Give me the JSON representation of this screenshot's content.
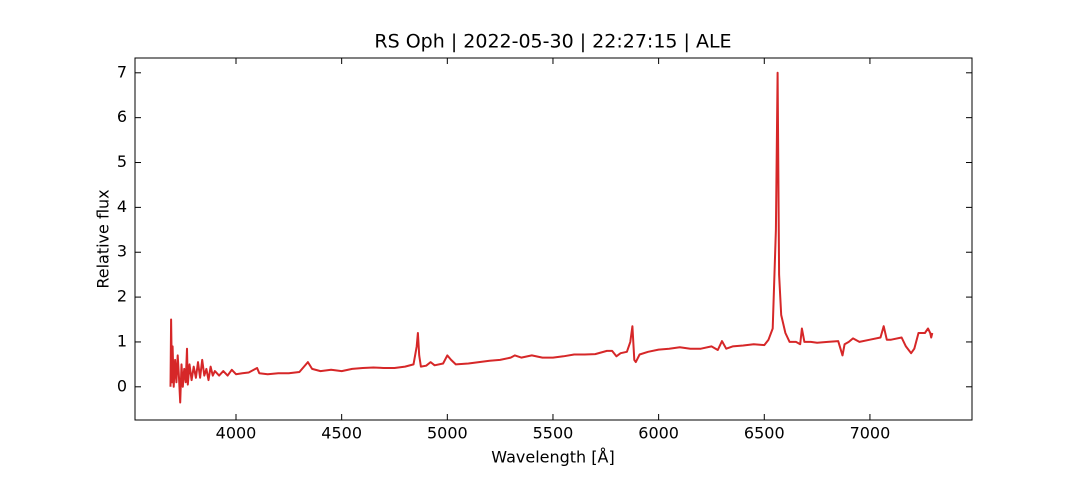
{
  "chart_data": {
    "type": "line",
    "title": "RS Oph | 2022-05-30 | 22:27:15 | ALE",
    "x_label": "Wavelength [Å]",
    "y_label": "Relative flux",
    "color": "#d62728",
    "xlim": [
      3522,
      7483
    ],
    "ylim": [
      -0.74,
      7.33
    ],
    "xticks": [
      4000,
      4500,
      5000,
      5500,
      6000,
      6500,
      7000
    ],
    "yticks": [
      0,
      1,
      2,
      3,
      4,
      5,
      6,
      7
    ],
    "x": [
      3690,
      3693,
      3697,
      3700,
      3705,
      3712,
      3718,
      3724,
      3730,
      3736,
      3742,
      3748,
      3755,
      3762,
      3768,
      3772,
      3780,
      3790,
      3800,
      3810,
      3820,
      3830,
      3840,
      3850,
      3860,
      3870,
      3880,
      3890,
      3900,
      3920,
      3940,
      3960,
      3980,
      4000,
      4030,
      4060,
      4100,
      4110,
      4150,
      4200,
      4250,
      4300,
      4340,
      4360,
      4400,
      4450,
      4500,
      4550,
      4600,
      4650,
      4700,
      4750,
      4800,
      4840,
      4855,
      4861,
      4867,
      4875,
      4900,
      4921,
      4940,
      4980,
      5000,
      5018,
      5040,
      5100,
      5150,
      5200,
      5250,
      5300,
      5320,
      5350,
      5400,
      5450,
      5500,
      5550,
      5600,
      5650,
      5700,
      5755,
      5780,
      5800,
      5820,
      5850,
      5866,
      5876,
      5885,
      5892,
      5910,
      5950,
      6000,
      6050,
      6100,
      6150,
      6200,
      6250,
      6280,
      6300,
      6320,
      6350,
      6400,
      6450,
      6500,
      6520,
      6540,
      6555,
      6563,
      6570,
      6580,
      6600,
      6620,
      6650,
      6670,
      6678,
      6690,
      6720,
      6750,
      6800,
      6850,
      6870,
      6880,
      6900,
      6920,
      6950,
      7000,
      7050,
      7065,
      7080,
      7100,
      7150,
      7170,
      7195,
      7210,
      7230,
      7260,
      7275,
      7285,
      7290,
      7295
    ],
    "values": [
      0.0,
      1.5,
      0.1,
      0.9,
      0.0,
      0.6,
      0.1,
      0.7,
      0.2,
      -0.35,
      0.5,
      0.0,
      0.4,
      0.1,
      0.85,
      0.05,
      0.5,
      0.15,
      0.45,
      0.2,
      0.55,
      0.2,
      0.6,
      0.25,
      0.4,
      0.15,
      0.45,
      0.25,
      0.35,
      0.25,
      0.35,
      0.25,
      0.38,
      0.28,
      0.3,
      0.32,
      0.42,
      0.3,
      0.28,
      0.3,
      0.3,
      0.33,
      0.55,
      0.4,
      0.35,
      0.38,
      0.35,
      0.4,
      0.42,
      0.43,
      0.42,
      0.42,
      0.45,
      0.5,
      0.9,
      1.2,
      0.7,
      0.45,
      0.47,
      0.55,
      0.48,
      0.52,
      0.7,
      0.6,
      0.5,
      0.52,
      0.55,
      0.58,
      0.6,
      0.65,
      0.7,
      0.65,
      0.7,
      0.65,
      0.65,
      0.68,
      0.72,
      0.72,
      0.73,
      0.8,
      0.8,
      0.68,
      0.75,
      0.78,
      1.0,
      1.35,
      0.6,
      0.55,
      0.72,
      0.78,
      0.83,
      0.85,
      0.88,
      0.85,
      0.85,
      0.9,
      0.82,
      1.02,
      0.85,
      0.9,
      0.92,
      0.95,
      0.93,
      1.05,
      1.3,
      3.5,
      7.0,
      2.5,
      1.6,
      1.2,
      1.0,
      1.0,
      0.95,
      1.3,
      1.0,
      1.0,
      0.98,
      1.0,
      1.02,
      0.7,
      0.95,
      1.0,
      1.08,
      1.0,
      1.05,
      1.1,
      1.35,
      1.05,
      1.05,
      1.1,
      0.9,
      0.75,
      0.85,
      1.2,
      1.2,
      1.3,
      1.2,
      1.1,
      1.2
    ]
  }
}
